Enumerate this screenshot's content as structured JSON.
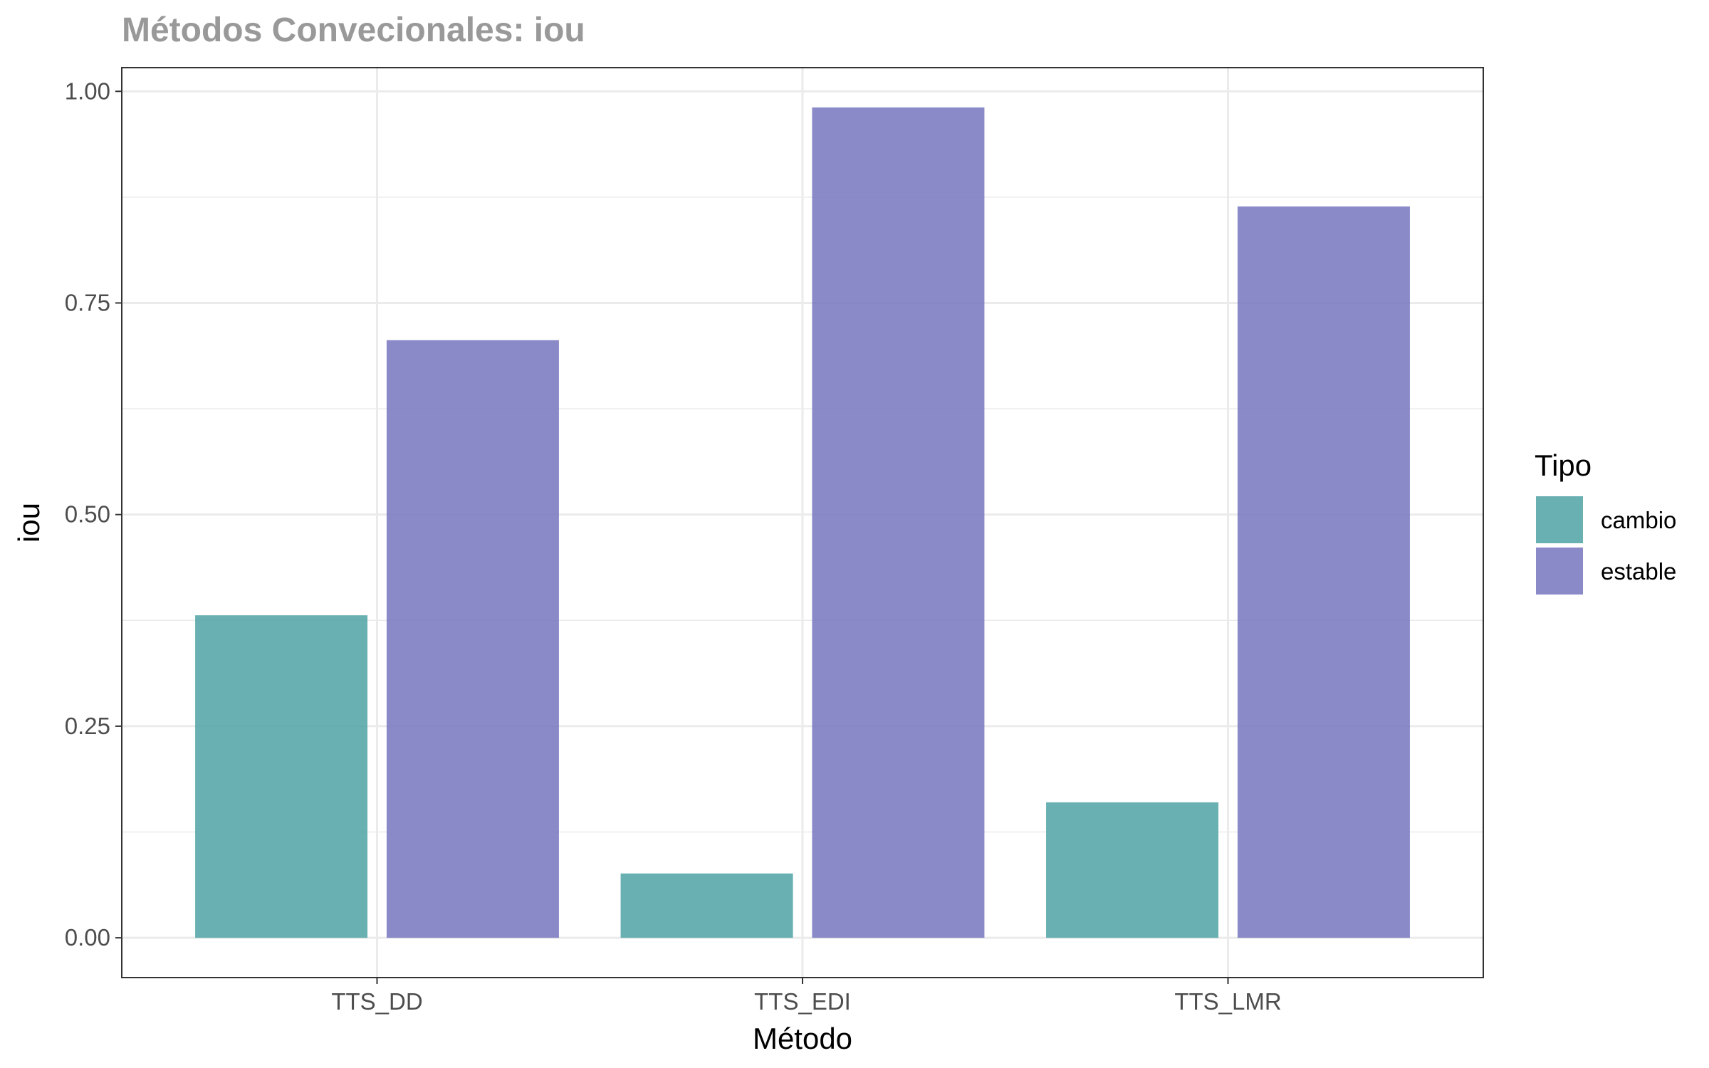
{
  "chart_data": {
    "type": "bar",
    "title": "Métodos Convecionales: iou",
    "xlabel": "Método",
    "ylabel": "iou",
    "categories": [
      "TTS_DD",
      "TTS_EDI",
      "TTS_LMR"
    ],
    "series": [
      {
        "name": "cambio",
        "values": [
          0.381,
          0.076,
          0.16
        ],
        "color": "#4da2a5"
      },
      {
        "name": "estable",
        "values": [
          0.706,
          0.981,
          0.864
        ],
        "color": "#7775be"
      }
    ],
    "ylim": [
      -0.047,
      1.028
    ],
    "yticks": [
      0.0,
      0.25,
      0.5,
      0.75,
      1.0
    ],
    "ytick_labels": [
      "0.00",
      "0.25",
      "0.50",
      "0.75",
      "1.00"
    ],
    "grid": true,
    "legend": {
      "title": "Tipo",
      "position": "right"
    }
  }
}
